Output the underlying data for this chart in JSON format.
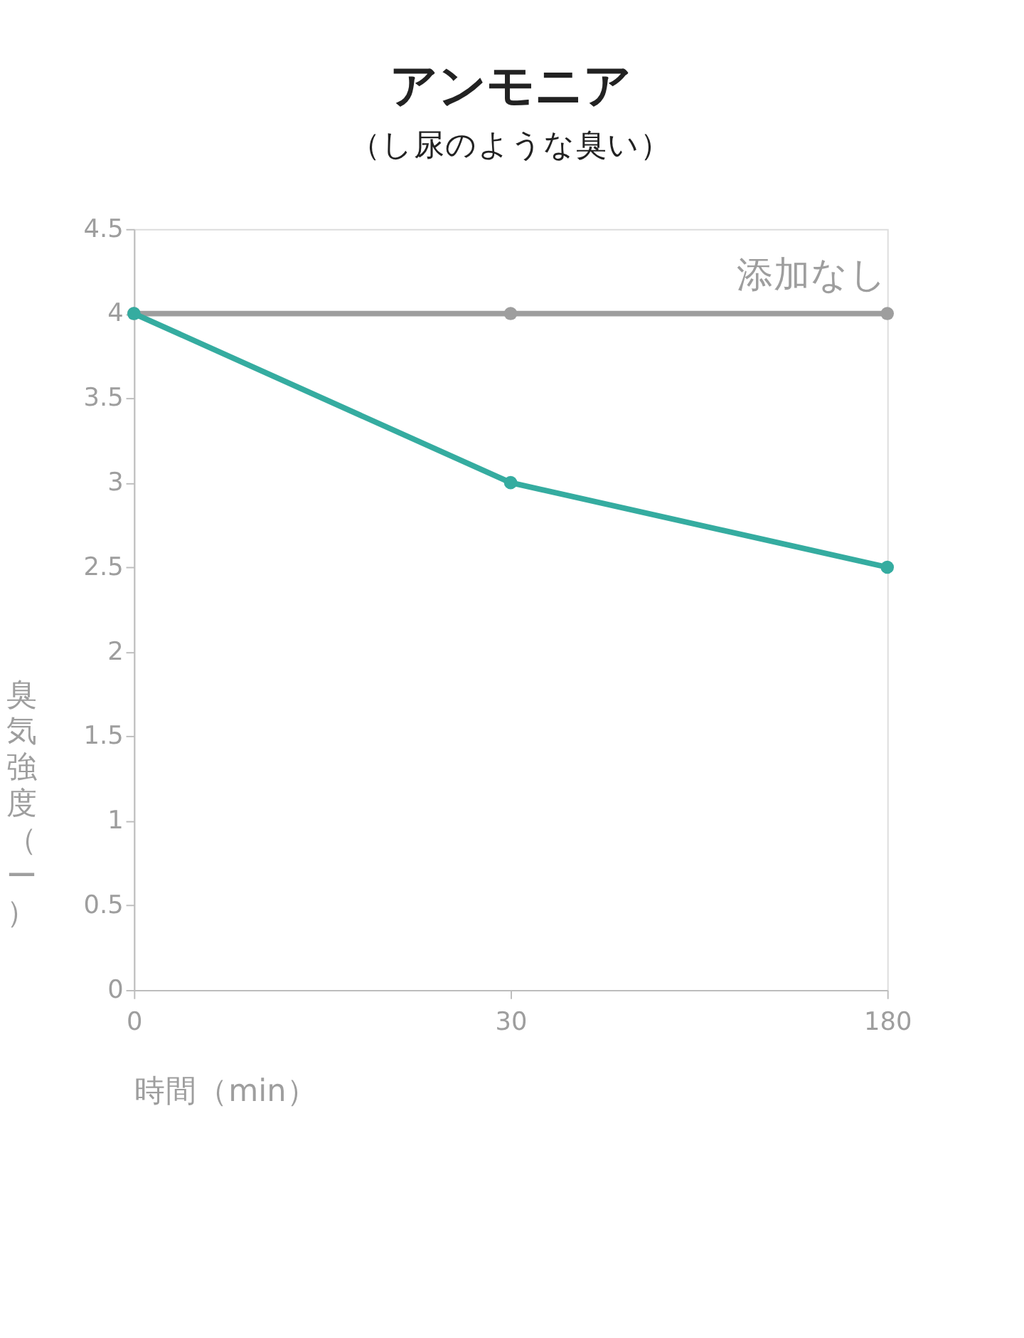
{
  "chart_data": {
    "type": "line",
    "title": "アンモニア",
    "subtitle": "（し尿のような臭い）",
    "xlabel": "時間（min）",
    "ylabel": "臭気強度（ー）",
    "categories": [
      "0",
      "30",
      "180"
    ],
    "series": [
      {
        "name": "添加なし",
        "color": "#9e9e9e",
        "values": [
          4,
          4,
          4
        ]
      },
      {
        "color": "#35aca0",
        "values": [
          4,
          3,
          2.5
        ]
      }
    ],
    "ylim": [
      0,
      4.5
    ],
    "yticks": [
      0,
      0.5,
      1,
      1.5,
      2,
      2.5,
      3,
      3.5,
      4,
      4.5
    ],
    "marker": "circle",
    "line_style": "solid"
  }
}
